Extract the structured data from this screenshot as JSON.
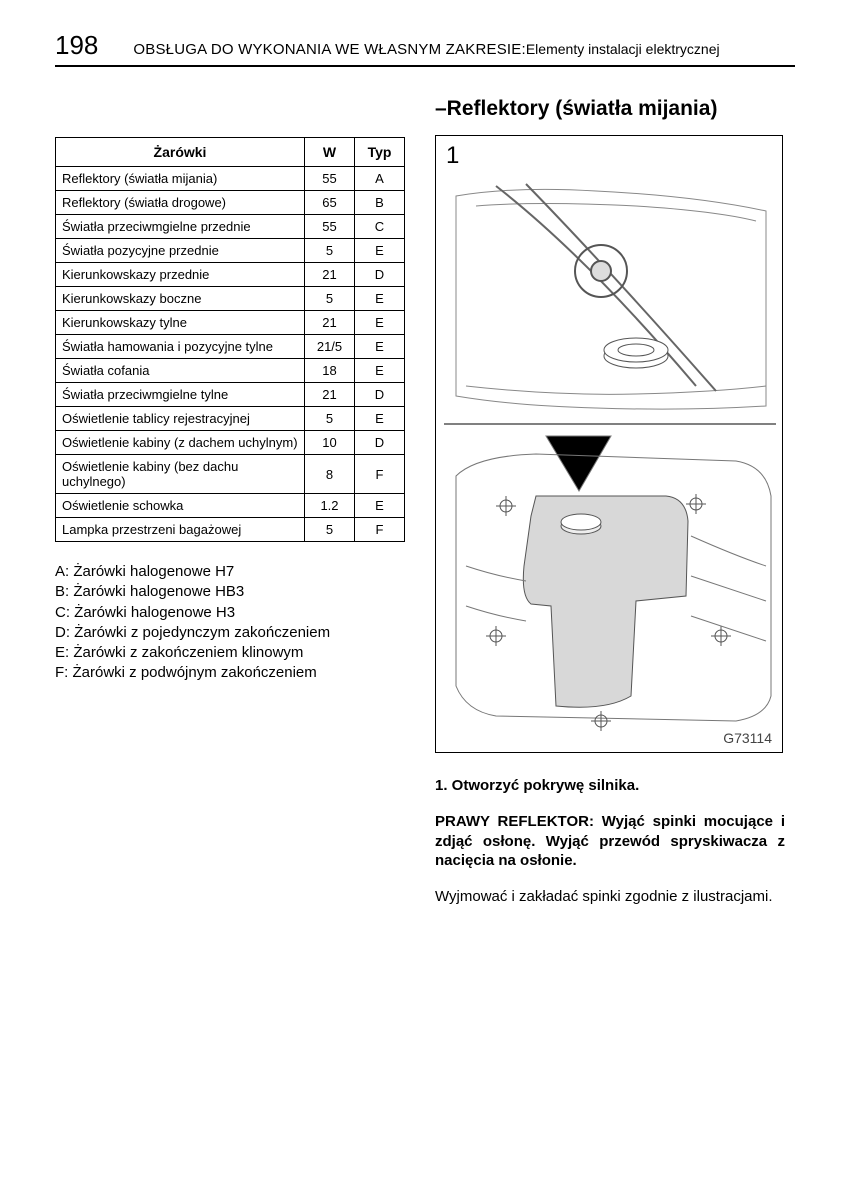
{
  "page_number": "198",
  "header_main": "OBSŁUGA DO WYKONANIA WE WŁASNYM ZAKRESIE: ",
  "header_sub": "Elementy instalacji elektrycznej",
  "section_title": "–Reflektory (światła mijania)",
  "table": {
    "columns": [
      "Żarówki",
      "W",
      "Typ"
    ],
    "rows": [
      [
        "Reflektory (światła mijania)",
        "55",
        "A"
      ],
      [
        "Reflektory (światła drogowe)",
        "65",
        "B"
      ],
      [
        "Światła przeciwmgielne przednie",
        "55",
        "C"
      ],
      [
        "Światła pozycyjne przednie",
        "5",
        "E"
      ],
      [
        "Kierunkowskazy przednie",
        "21",
        "D"
      ],
      [
        "Kierunkowskazy boczne",
        "5",
        "E"
      ],
      [
        "Kierunkowskazy tylne",
        "21",
        "E"
      ],
      [
        "Światła hamowania i pozycyjne tylne",
        "21/5",
        "E"
      ],
      [
        "Światła cofania",
        "18",
        "E"
      ],
      [
        "Światła przeciwmgielne tylne",
        "21",
        "D"
      ],
      [
        "Oświetlenie tablicy rejestracyjnej",
        "5",
        "E"
      ],
      [
        "Oświetlenie kabiny (z dachem uchylnym)",
        "10",
        "D"
      ],
      [
        "Oświetlenie kabiny (bez dachu uchylnego)",
        "8",
        "F"
      ],
      [
        "Oświetlenie schowka",
        "1.2",
        "E"
      ],
      [
        "Lampka przestrzeni bagażowej",
        "5",
        "F"
      ]
    ]
  },
  "legend": [
    "A: Żarówki halogenowe H7",
    "B: Żarówki halogenowe HB3",
    "C: Żarówki halogenowe H3",
    "D: Żarówki z pojedynczym zakończeniem",
    "E: Żarówki z zakończeniem klinowym",
    "F: Żarówki z podwójnym zakończeniem"
  ],
  "figure": {
    "number": "1",
    "code": "G73114"
  },
  "step1": "1. Otworzyć pokrywę silnika.",
  "bold_block": "PRAWY REFLEKTOR: Wyjąć spinki mocujące i zdjąć osłonę. Wyjąć przewód spryskiwacza z nacięcia na osłonie.",
  "body_text": "Wyjmować i zakładać spinki zgodnie z ilustracjami."
}
